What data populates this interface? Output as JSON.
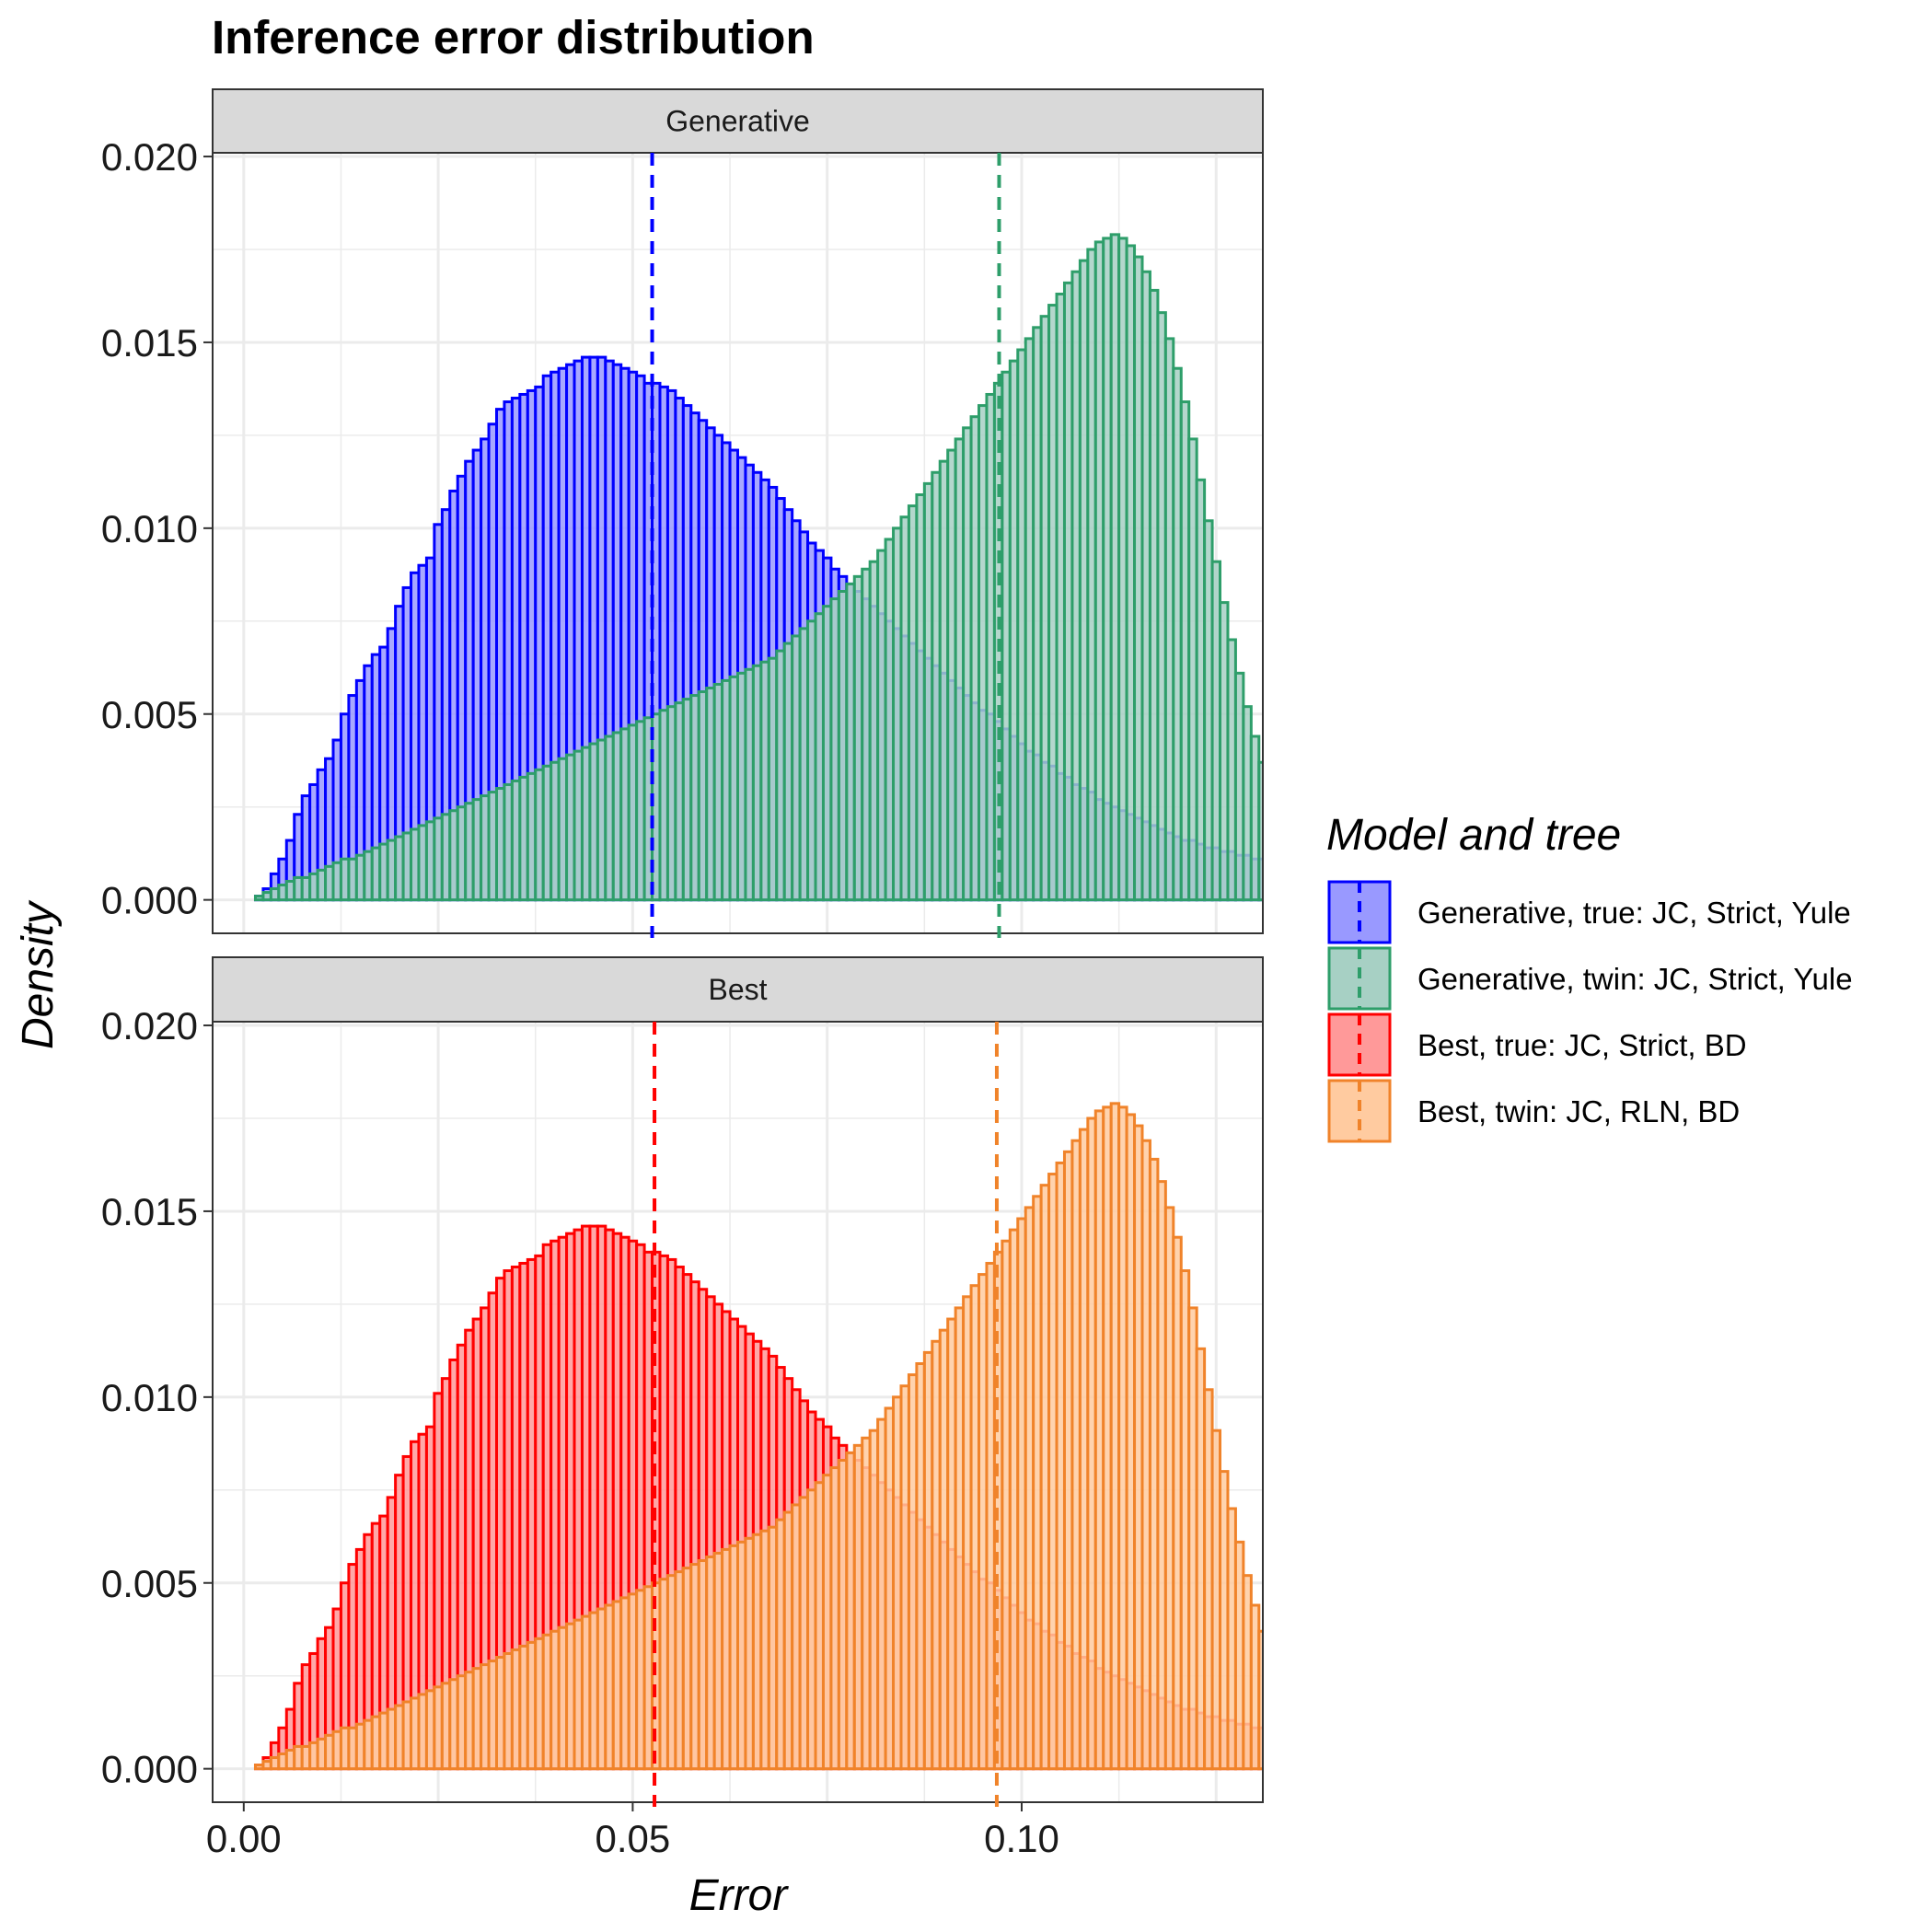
{
  "chart_data": {
    "type": "bar",
    "subtype": "histogram",
    "title": "Inference error distribution",
    "xlabel": "Error",
    "ylabel": "Density",
    "xlim": [
      -0.004,
      0.131
    ],
    "ylim": [
      -0.0009,
      0.0201
    ],
    "x_ticks": [
      0.0,
      0.05,
      0.1
    ],
    "x_tick_labels": [
      "0.00",
      "0.05",
      "0.10"
    ],
    "y_ticks": [
      0.0,
      0.005,
      0.01,
      0.015,
      0.02
    ],
    "y_tick_labels": [
      "0.000",
      "0.005",
      "0.010",
      "0.015",
      "0.020"
    ],
    "bin_start": 0.0015,
    "bin_width": 0.001,
    "grid": true,
    "legend": {
      "title": "Model and tree",
      "position": "right",
      "entries": [
        {
          "label": "Generative, true: JC, Strict, Yule",
          "stroke": "#0000ff",
          "fill": "#9999ff"
        },
        {
          "label": "Generative, twin: JC, Strict, Yule",
          "stroke": "#2e9e6a",
          "fill": "#a7d0c4"
        },
        {
          "label": "Best, true: JC, Strict, BD",
          "stroke": "#ff0000",
          "fill": "#ff9999"
        },
        {
          "label": "Best, twin: JC, RLN, BD",
          "stroke": "#f0832a",
          "fill": "#ffcba0"
        }
      ]
    },
    "panels": [
      {
        "strip": "Generative",
        "series": [
          {
            "name": "Generative, true: JC, Strict, Yule",
            "stroke": "#0000ff",
            "fill": "#9999ff",
            "mean": 0.0525,
            "values": [
              0.0001,
              0.0003,
              0.0007,
              0.0011,
              0.0016,
              0.0023,
              0.0028,
              0.0031,
              0.0035,
              0.0038,
              0.0043,
              0.005,
              0.0055,
              0.0059,
              0.0063,
              0.0066,
              0.0068,
              0.0073,
              0.0079,
              0.0084,
              0.0088,
              0.009,
              0.0092,
              0.0101,
              0.0105,
              0.011,
              0.0114,
              0.0118,
              0.0121,
              0.0124,
              0.0128,
              0.0132,
              0.0134,
              0.0135,
              0.0136,
              0.0137,
              0.0138,
              0.0141,
              0.0142,
              0.0143,
              0.0144,
              0.0145,
              0.0146,
              0.0146,
              0.0146,
              0.0145,
              0.0144,
              0.0143,
              0.0142,
              0.0141,
              0.0139,
              0.0139,
              0.0138,
              0.0137,
              0.0135,
              0.0133,
              0.0131,
              0.0129,
              0.0127,
              0.0125,
              0.0123,
              0.0121,
              0.0119,
              0.0117,
              0.0115,
              0.0113,
              0.0111,
              0.0108,
              0.0105,
              0.0102,
              0.0099,
              0.0096,
              0.0094,
              0.0092,
              0.0089,
              0.0087,
              0.0085,
              0.0083,
              0.0081,
              0.0079,
              0.0077,
              0.0075,
              0.0073,
              0.0071,
              0.0069,
              0.0067,
              0.0065,
              0.0063,
              0.0061,
              0.0059,
              0.0057,
              0.0055,
              0.0053,
              0.0051,
              0.005,
              0.0048,
              0.0046,
              0.0044,
              0.0042,
              0.004,
              0.0039,
              0.0037,
              0.0036,
              0.0034,
              0.0033,
              0.0031,
              0.003,
              0.0029,
              0.0027,
              0.0026,
              0.0025,
              0.0024,
              0.0023,
              0.0022,
              0.0021,
              0.002,
              0.0019,
              0.0018,
              0.0017,
              0.0016,
              0.0016,
              0.0015,
              0.0014,
              0.0014,
              0.0013,
              0.0013,
              0.0012,
              0.0012,
              0.0011,
              0.0011
            ]
          },
          {
            "name": "Generative, twin: JC, Strict, Yule",
            "stroke": "#2e9e6a",
            "fill": "#a7d0c4",
            "mean": 0.0971,
            "values": [
              0.0001,
              0.0002,
              0.0003,
              0.0004,
              0.0005,
              0.0006,
              0.0006,
              0.0007,
              0.0008,
              0.0009,
              0.001,
              0.0011,
              0.0011,
              0.0012,
              0.0013,
              0.0014,
              0.0015,
              0.0016,
              0.0017,
              0.0018,
              0.0019,
              0.002,
              0.0021,
              0.0022,
              0.0023,
              0.0024,
              0.0025,
              0.0026,
              0.0027,
              0.0028,
              0.0029,
              0.003,
              0.0031,
              0.0032,
              0.0033,
              0.0034,
              0.0035,
              0.0036,
              0.0037,
              0.0038,
              0.0039,
              0.004,
              0.0041,
              0.0042,
              0.0043,
              0.0044,
              0.0045,
              0.0046,
              0.0047,
              0.0048,
              0.0049,
              0.005,
              0.0051,
              0.0052,
              0.0053,
              0.0054,
              0.0055,
              0.0056,
              0.0057,
              0.0058,
              0.0059,
              0.006,
              0.0061,
              0.0062,
              0.0063,
              0.0064,
              0.0065,
              0.0067,
              0.0069,
              0.0071,
              0.0073,
              0.0075,
              0.0077,
              0.0079,
              0.0081,
              0.0083,
              0.0085,
              0.0087,
              0.0089,
              0.0091,
              0.0094,
              0.0097,
              0.01,
              0.0103,
              0.0106,
              0.0109,
              0.0112,
              0.0115,
              0.0118,
              0.0121,
              0.0124,
              0.0127,
              0.013,
              0.0133,
              0.0136,
              0.0139,
              0.0142,
              0.0145,
              0.0148,
              0.0151,
              0.0154,
              0.0157,
              0.016,
              0.0163,
              0.0166,
              0.0169,
              0.0172,
              0.0175,
              0.0177,
              0.0178,
              0.0179,
              0.0178,
              0.0176,
              0.0173,
              0.0169,
              0.0164,
              0.0158,
              0.0151,
              0.0143,
              0.0134,
              0.0124,
              0.0113,
              0.0102,
              0.0091,
              0.008,
              0.007,
              0.0061,
              0.0052,
              0.0044,
              0.0037,
              0.0031
            ]
          }
        ]
      },
      {
        "strip": "Best",
        "series": [
          {
            "name": "Best, true: JC, Strict, BD",
            "stroke": "#ff0000",
            "fill": "#ff9999",
            "mean": 0.0528,
            "values": [
              0.0001,
              0.0003,
              0.0007,
              0.0011,
              0.0016,
              0.0023,
              0.0028,
              0.0031,
              0.0035,
              0.0038,
              0.0043,
              0.005,
              0.0055,
              0.0059,
              0.0063,
              0.0066,
              0.0068,
              0.0073,
              0.0079,
              0.0084,
              0.0088,
              0.009,
              0.0092,
              0.0101,
              0.0105,
              0.011,
              0.0114,
              0.0118,
              0.0121,
              0.0124,
              0.0128,
              0.0132,
              0.0134,
              0.0135,
              0.0136,
              0.0137,
              0.0138,
              0.0141,
              0.0142,
              0.0143,
              0.0144,
              0.0145,
              0.0146,
              0.0146,
              0.0146,
              0.0145,
              0.0144,
              0.0143,
              0.0142,
              0.0141,
              0.0139,
              0.0139,
              0.0138,
              0.0137,
              0.0135,
              0.0133,
              0.0131,
              0.0129,
              0.0127,
              0.0125,
              0.0123,
              0.0121,
              0.0119,
              0.0117,
              0.0115,
              0.0113,
              0.0111,
              0.0108,
              0.0105,
              0.0102,
              0.0099,
              0.0096,
              0.0094,
              0.0092,
              0.0089,
              0.0087,
              0.0085,
              0.0083,
              0.0081,
              0.0079,
              0.0077,
              0.0075,
              0.0073,
              0.0071,
              0.0069,
              0.0067,
              0.0065,
              0.0063,
              0.0061,
              0.0059,
              0.0057,
              0.0055,
              0.0053,
              0.0051,
              0.005,
              0.0048,
              0.0046,
              0.0044,
              0.0042,
              0.004,
              0.0039,
              0.0037,
              0.0036,
              0.0034,
              0.0033,
              0.0031,
              0.003,
              0.0029,
              0.0027,
              0.0026,
              0.0025,
              0.0024,
              0.0023,
              0.0022,
              0.0021,
              0.002,
              0.0019,
              0.0018,
              0.0017,
              0.0016,
              0.0016,
              0.0015,
              0.0014,
              0.0014,
              0.0013,
              0.0013,
              0.0012,
              0.0012,
              0.0011,
              0.0011
            ]
          },
          {
            "name": "Best, twin: JC, RLN, BD",
            "stroke": "#f0832a",
            "fill": "#ffcba0",
            "mean": 0.0968,
            "values": [
              0.0001,
              0.0002,
              0.0003,
              0.0004,
              0.0005,
              0.0006,
              0.0006,
              0.0007,
              0.0008,
              0.0009,
              0.001,
              0.0011,
              0.0011,
              0.0012,
              0.0013,
              0.0014,
              0.0015,
              0.0016,
              0.0017,
              0.0018,
              0.0019,
              0.002,
              0.0021,
              0.0022,
              0.0023,
              0.0024,
              0.0025,
              0.0026,
              0.0027,
              0.0028,
              0.0029,
              0.003,
              0.0031,
              0.0032,
              0.0033,
              0.0034,
              0.0035,
              0.0036,
              0.0037,
              0.0038,
              0.0039,
              0.004,
              0.0041,
              0.0042,
              0.0043,
              0.0044,
              0.0045,
              0.0046,
              0.0047,
              0.0048,
              0.0049,
              0.005,
              0.0051,
              0.0052,
              0.0053,
              0.0054,
              0.0055,
              0.0056,
              0.0057,
              0.0058,
              0.0059,
              0.006,
              0.0061,
              0.0062,
              0.0063,
              0.0064,
              0.0065,
              0.0067,
              0.0069,
              0.0071,
              0.0073,
              0.0075,
              0.0077,
              0.0079,
              0.0081,
              0.0083,
              0.0085,
              0.0087,
              0.0089,
              0.0091,
              0.0094,
              0.0097,
              0.01,
              0.0103,
              0.0106,
              0.0109,
              0.0112,
              0.0115,
              0.0118,
              0.0121,
              0.0124,
              0.0127,
              0.013,
              0.0133,
              0.0136,
              0.0139,
              0.0142,
              0.0145,
              0.0148,
              0.0151,
              0.0154,
              0.0157,
              0.016,
              0.0163,
              0.0166,
              0.0169,
              0.0172,
              0.0175,
              0.0177,
              0.0178,
              0.0179,
              0.0178,
              0.0176,
              0.0173,
              0.0169,
              0.0164,
              0.0158,
              0.0151,
              0.0143,
              0.0134,
              0.0124,
              0.0113,
              0.0102,
              0.0091,
              0.008,
              0.007,
              0.0061,
              0.0052,
              0.0044,
              0.0037,
              0.0031
            ]
          }
        ]
      }
    ]
  }
}
